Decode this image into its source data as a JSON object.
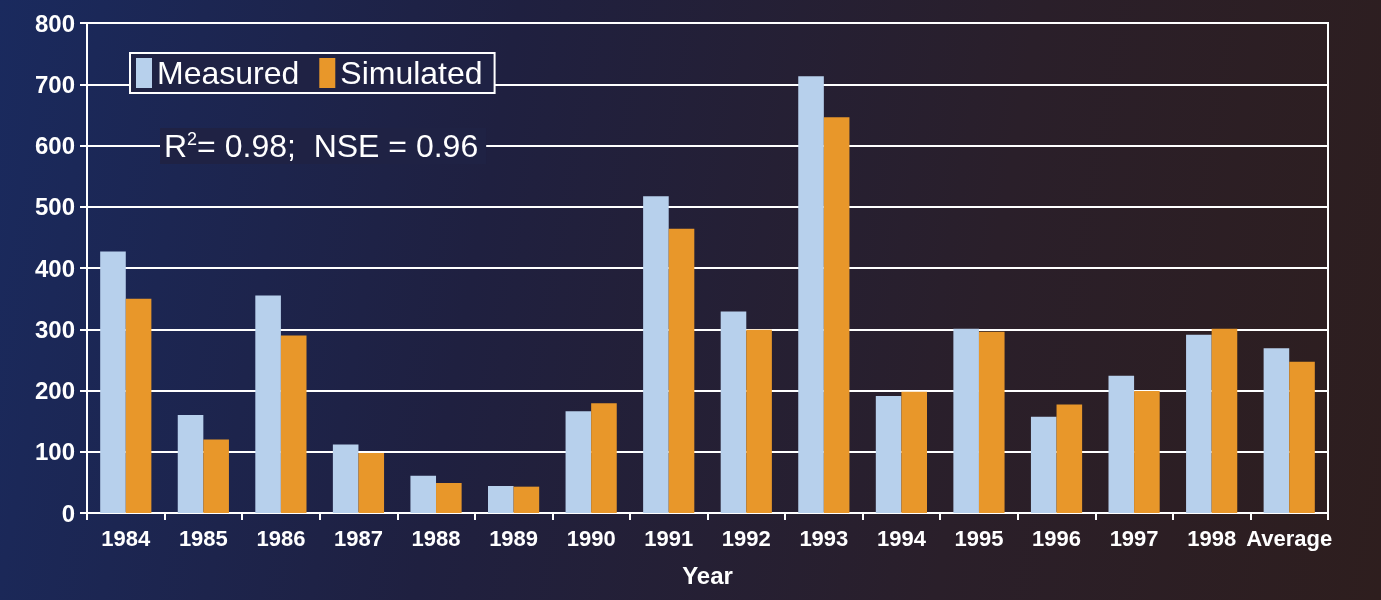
{
  "chart_data": {
    "type": "bar",
    "xlabel": "Year",
    "categories": [
      "1984",
      "1985",
      "1986",
      "1987",
      "1988",
      "1989",
      "1990",
      "1991",
      "1992",
      "1993",
      "1994",
      "1995",
      "1996",
      "1997",
      "1998",
      "Average"
    ],
    "series": [
      {
        "name": "Measured",
        "color": "#b7d0ec",
        "values": [
          427,
          160,
          355,
          112,
          61,
          44,
          166,
          517,
          329,
          713,
          191,
          301,
          157,
          224,
          291,
          269
        ]
      },
      {
        "name": "Simulated",
        "color": "#e8972a",
        "values": [
          350,
          120,
          290,
          98,
          49,
          43,
          179,
          464,
          299,
          646,
          198,
          296,
          177,
          199,
          301,
          247
        ]
      }
    ],
    "ylim": [
      0,
      800
    ],
    "yticks": [
      0,
      100,
      200,
      300,
      400,
      500,
      600,
      700,
      800
    ],
    "grid": "y",
    "legend": "top left",
    "annotations": [
      "R$^{2}$= 0.98;  NSE = 0.96"
    ]
  }
}
